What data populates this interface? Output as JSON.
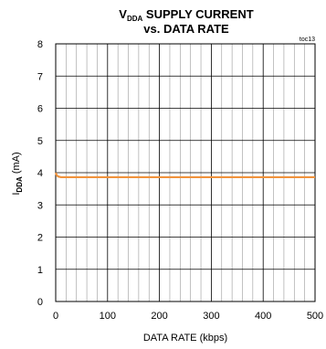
{
  "chart_data": {
    "type": "line",
    "title_line1": {
      "main1": "V",
      "sub1": "DDA",
      "rest": " SUPPLY CURRENT"
    },
    "title_line2": "vs. DATA RATE",
    "tag": "toc13",
    "xlabel": "DATA RATE (kbps)",
    "ylabel": {
      "main": "I",
      "sub": "DDA",
      "rest": " (mA)"
    },
    "xlim": [
      0,
      500
    ],
    "ylim": [
      0,
      8
    ],
    "x_ticks": [
      0,
      100,
      200,
      300,
      400,
      500
    ],
    "y_ticks": [
      0,
      1,
      2,
      3,
      4,
      5,
      6,
      7,
      8
    ],
    "grid": true,
    "series": [
      {
        "color": "#f0923c",
        "x": [
          0,
          2,
          5,
          10,
          20,
          50,
          100,
          200,
          300,
          400,
          500
        ],
        "y": [
          4.0,
          3.92,
          3.88,
          3.86,
          3.86,
          3.86,
          3.86,
          3.86,
          3.86,
          3.86,
          3.86
        ]
      }
    ]
  }
}
